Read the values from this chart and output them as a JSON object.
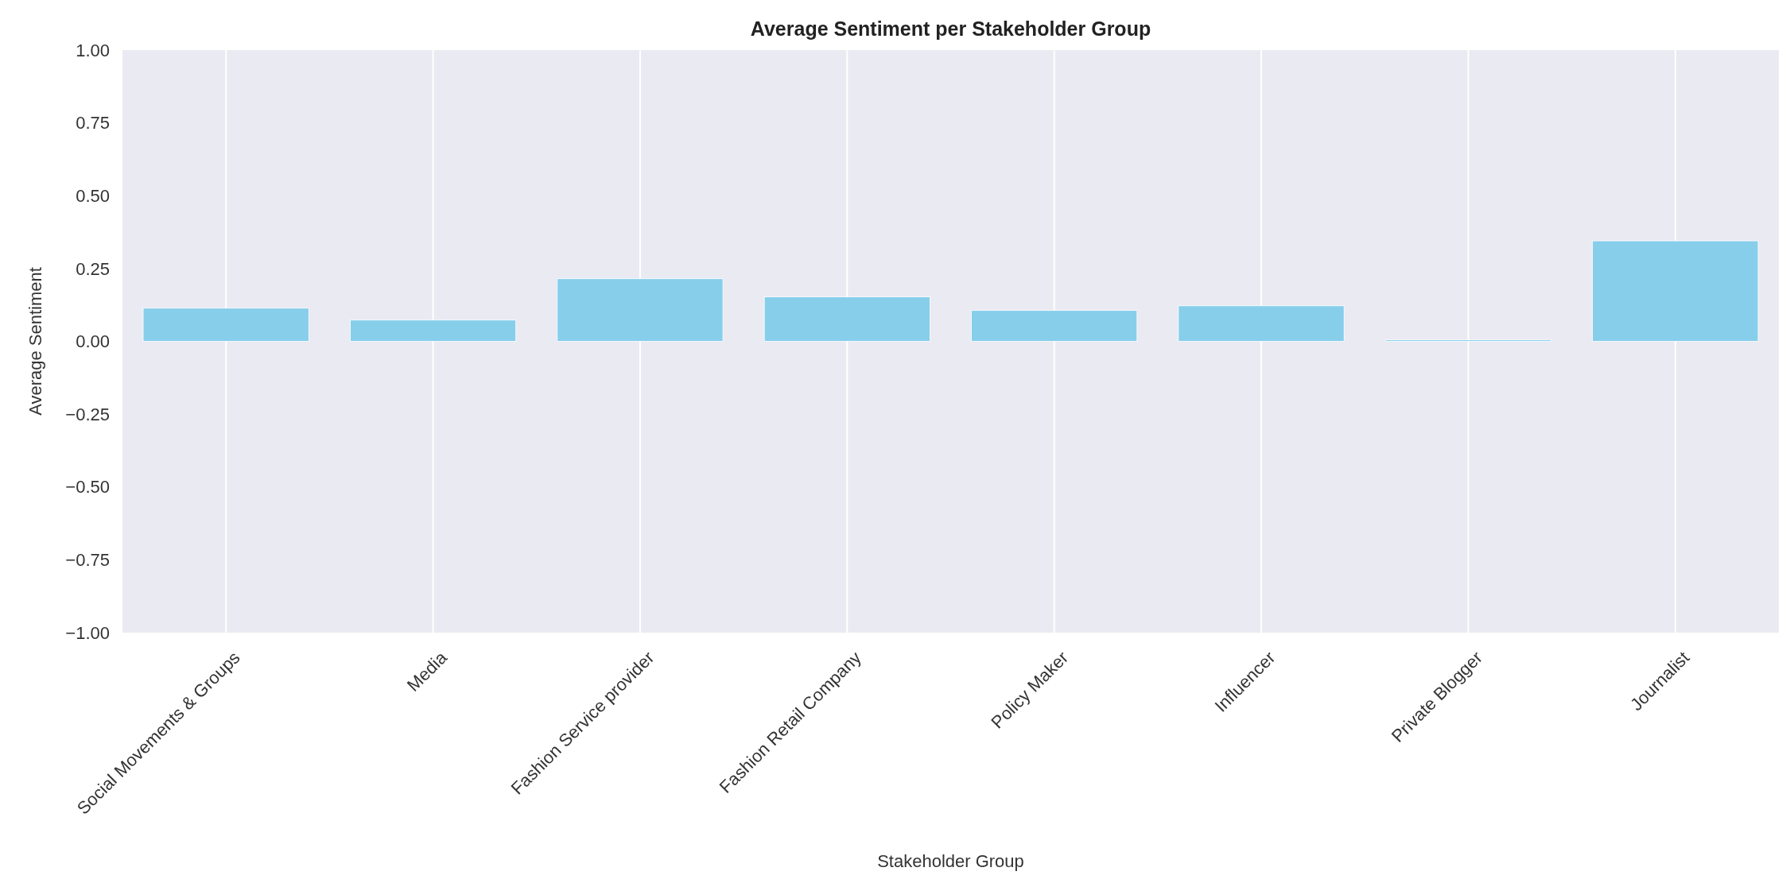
{
  "chart_data": {
    "type": "bar",
    "title": "Average Sentiment per Stakeholder Group",
    "xlabel": "Stakeholder Group",
    "ylabel": "Average Sentiment",
    "categories": [
      "Social Movements & Groups",
      "Media",
      "Fashion Service provider",
      "Fashion Retail Company",
      "Policy Maker",
      "Influencer",
      "Private Blogger",
      "Journalist"
    ],
    "values": [
      0.114,
      0.073,
      0.215,
      0.153,
      0.106,
      0.122,
      0.005,
      0.345
    ],
    "color": "#87ceeb",
    "ylim": [
      -1,
      1
    ],
    "yticks": [
      {
        "value": -1,
        "label": "−1.00"
      },
      {
        "value": -0.75,
        "label": "−0.75"
      },
      {
        "value": -0.5,
        "label": "−0.50"
      },
      {
        "value": -0.25,
        "label": "−0.25"
      },
      {
        "value": 0,
        "label": "0.00"
      },
      {
        "value": 0.25,
        "label": "0.25"
      },
      {
        "value": 0.5,
        "label": "0.50"
      },
      {
        "value": 0.75,
        "label": "0.75"
      },
      {
        "value": 1,
        "label": "1.00"
      }
    ],
    "grid": "x"
  }
}
